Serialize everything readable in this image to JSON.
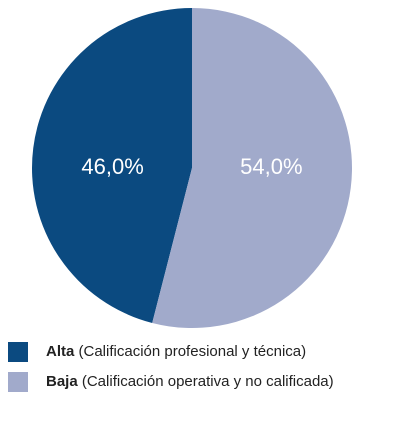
{
  "chart_data": {
    "type": "pie",
    "categories": [
      "Alta",
      "Baja"
    ],
    "descriptions": [
      "(Calificación profesional y técnica)",
      "(Calificación operativa y no calificada)"
    ],
    "values": [
      46.0,
      54.0
    ],
    "value_labels": [
      "46,0%",
      "54,0%"
    ],
    "colors": [
      "#0b4a80",
      "#a1aacb"
    ]
  }
}
